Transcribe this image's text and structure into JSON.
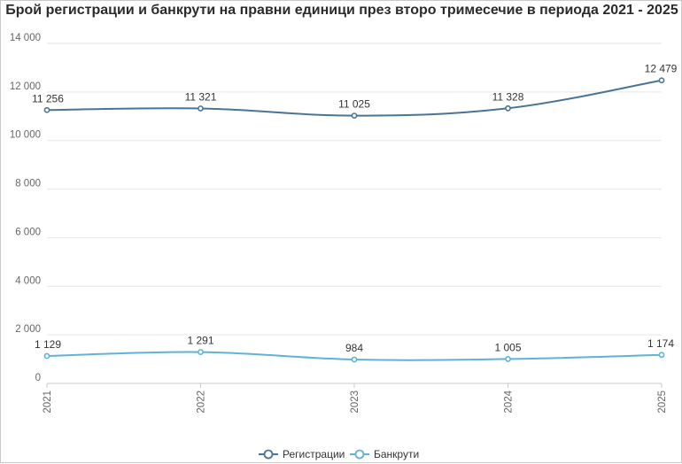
{
  "chart_data": {
    "type": "line",
    "title": "Брой регистрации и банкрути на правни единици през второ тримесечие в периода 2021 - 2025",
    "categories": [
      "2021",
      "2022",
      "2023",
      "2024",
      "2025"
    ],
    "series": [
      {
        "name": "Регистрации",
        "values": [
          11256,
          11321,
          11025,
          11328,
          12479
        ],
        "labels": [
          "11 256",
          "11 321",
          "11 025",
          "11 328",
          "12 479"
        ],
        "color": "#4a7495"
      },
      {
        "name": "Банкрути",
        "values": [
          1129,
          1291,
          984,
          1005,
          1174
        ],
        "labels": [
          "1 129",
          "1 291",
          "984",
          "1 005",
          "1 174"
        ],
        "color": "#5fb3d9"
      }
    ],
    "ylim": [
      0,
      14000
    ],
    "yticks": [
      0,
      2000,
      4000,
      6000,
      8000,
      10000,
      12000,
      14000
    ],
    "ytick_labels": [
      "0",
      "2 000",
      "4 000",
      "6 000",
      "8 000",
      "10 000",
      "12 000",
      "14 000"
    ],
    "grid": true,
    "legend_position": "bottom-center"
  }
}
